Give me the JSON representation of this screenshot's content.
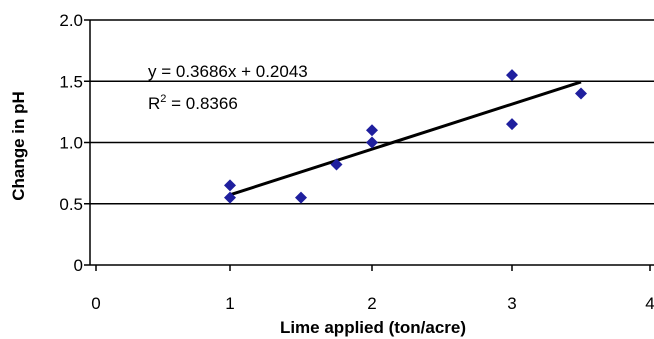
{
  "chart_data": {
    "type": "scatter",
    "xlabel": "Lime applied (ton/acre)",
    "ylabel": "Change in pH",
    "xlim": [
      0,
      4
    ],
    "ylim": [
      0,
      2.0
    ],
    "x_ticks": [
      0,
      1,
      2,
      3,
      4
    ],
    "x_tick_labels": [
      "0",
      "1",
      "2",
      "3",
      "4"
    ],
    "y_ticks": [
      0,
      0.5,
      1.0,
      1.5,
      2.0
    ],
    "y_tick_labels": [
      "0",
      "0.5",
      "1.0",
      "1.5",
      "2.0"
    ],
    "grid": "horizontal",
    "series": [
      {
        "points": [
          {
            "x": 1.0,
            "y": 0.65
          },
          {
            "x": 1.0,
            "y": 0.55
          },
          {
            "x": 1.5,
            "y": 0.55
          },
          {
            "x": 1.75,
            "y": 0.82
          },
          {
            "x": 2.0,
            "y": 1.1
          },
          {
            "x": 2.0,
            "y": 1.0
          },
          {
            "x": 3.0,
            "y": 1.55
          },
          {
            "x": 3.0,
            "y": 1.15
          },
          {
            "x": 3.5,
            "y": 1.4
          }
        ],
        "color": "#1f1f9e"
      }
    ],
    "trendline": {
      "slope": 0.3686,
      "intercept": 0.2043,
      "x_range": [
        1.0,
        3.5
      ],
      "color": "#000000"
    },
    "annotations": {
      "equation": "y = 0.3686x + 0.2043",
      "r_squared_prefix": "R",
      "r_squared_superscript": "2",
      "r_squared_value": " = 0.8366"
    }
  }
}
